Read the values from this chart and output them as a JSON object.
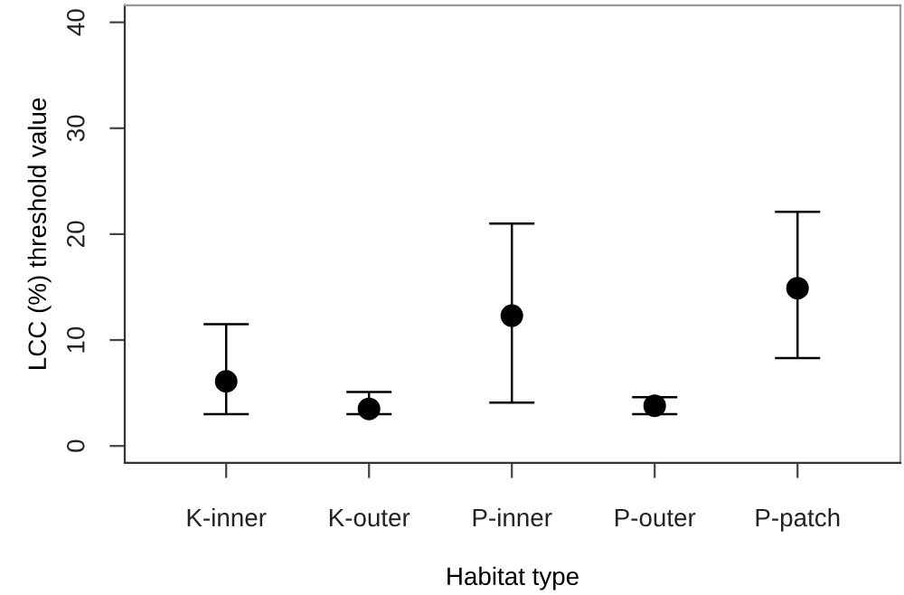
{
  "chart_data": {
    "type": "scatter",
    "xlabel": "Habitat type",
    "ylabel": "LCC (%) threshold value",
    "categories": [
      "K-inner",
      "K-outer",
      "P-inner",
      "P-outer",
      "P-patch"
    ],
    "values": [
      6.1,
      3.5,
      12.3,
      3.8,
      14.9
    ],
    "errors": [
      [
        3.0,
        11.5
      ],
      [
        3.0,
        5.1
      ],
      [
        4.1,
        21.0
      ],
      [
        3.0,
        4.6
      ],
      [
        8.3,
        22.1
      ]
    ],
    "color": "#000000",
    "marker": "circle",
    "ylim": [
      -1.6,
      41.6
    ],
    "yticks": [
      0,
      10,
      20,
      30,
      40
    ],
    "grid": false,
    "legend": false
  }
}
